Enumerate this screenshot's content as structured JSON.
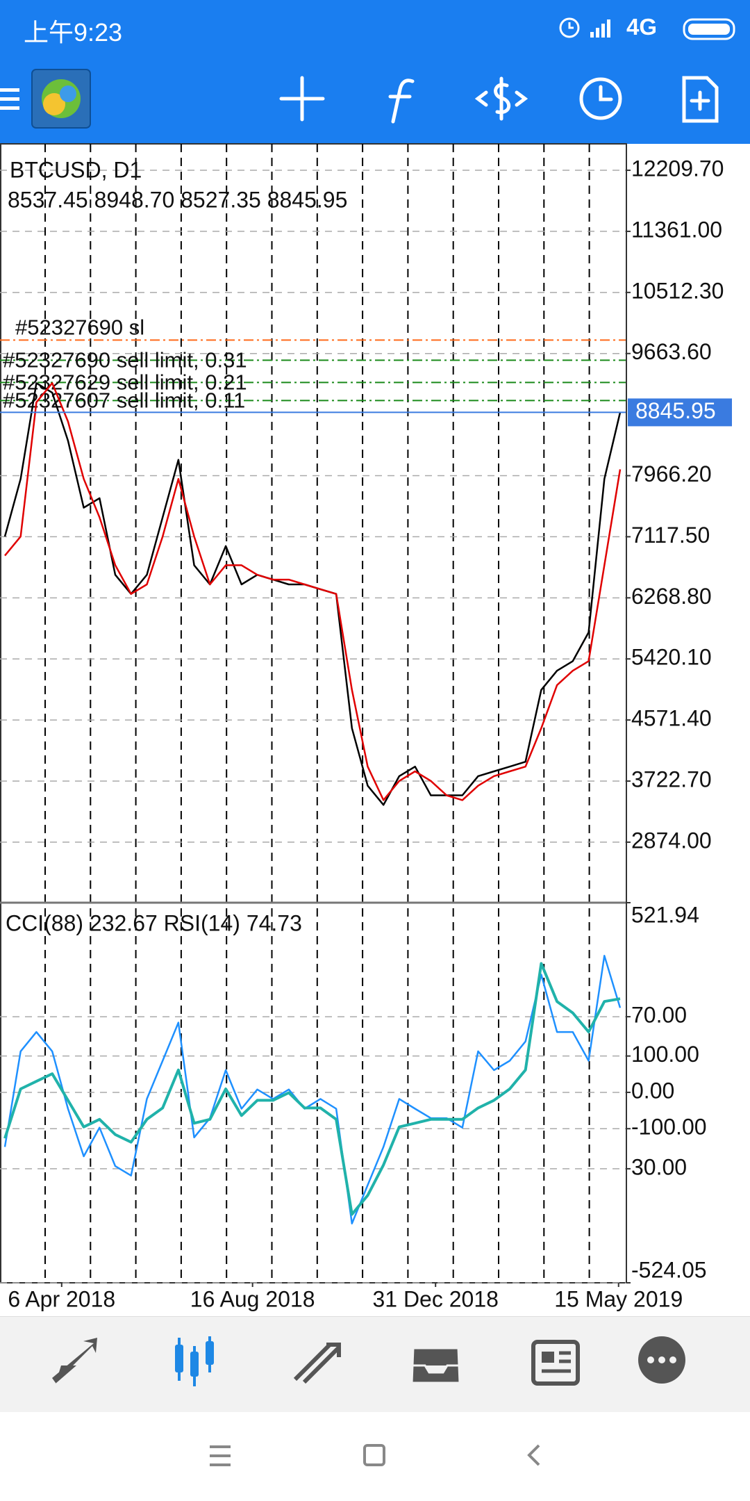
{
  "status_bar": {
    "time": "上午9:23",
    "network": "4G"
  },
  "chart_data": [
    {
      "type": "line",
      "title": "BTCUSD, D1",
      "subtitle": "8537.45 8948.70 8527.35 8845.95",
      "ylim": [
        2033,
        12577
      ],
      "yticks": [
        {
          "value": 12209.7,
          "label": "12209.70"
        },
        {
          "value": 11361,
          "label": "11361.00"
        },
        {
          "value": 10512.3,
          "label": "10512.30"
        },
        {
          "value": 9663.6,
          "label": "9663.60"
        },
        {
          "value": 7966.2,
          "label": "7966.20"
        },
        {
          "value": 7117.5,
          "label": "7117.50"
        },
        {
          "value": 6268.8,
          "label": "6268.80"
        },
        {
          "value": 5420.1,
          "label": "5420.10"
        },
        {
          "value": 4571.4,
          "label": "4571.40"
        },
        {
          "value": 3722.7,
          "label": "3722.70"
        },
        {
          "value": 2874,
          "label": "2874.00"
        }
      ],
      "grid": true,
      "series": [
        {
          "color": "#000000",
          "values": [
            7121,
            7921,
            9253,
            9119,
            8453,
            7521,
            7654,
            6589,
            6323,
            6589,
            7388,
            8187,
            6722,
            6455,
            6988,
            6455,
            6589,
            6522,
            6455,
            6455,
            6389,
            6323,
            4458,
            3658,
            3392,
            3791,
            3924,
            3525,
            3525,
            3525,
            3791,
            3858,
            3924,
            3991,
            4990,
            5256,
            5389,
            5789,
            7921,
            8845.95
          ]
        },
        {
          "color": "#e00000",
          "values": [
            6855,
            7121,
            8986,
            9253,
            8720,
            7921,
            7388,
            6722,
            6323,
            6455,
            7121,
            7921,
            7121,
            6455,
            6722,
            6722,
            6589,
            6522,
            6522,
            6455,
            6389,
            6323,
            4990,
            3924,
            3458,
            3725,
            3858,
            3725,
            3525,
            3458,
            3658,
            3791,
            3858,
            3924,
            4458,
            5056,
            5256,
            5389,
            6722,
            8054
          ]
        }
      ],
      "last_price": {
        "value": 8845.95,
        "color": "#3a7be0"
      },
      "orders": [
        {
          "label": "#52327690 sl",
          "price": 9851,
          "color": "#ff6a1a"
        },
        {
          "label": "#52327690 sell limit, 0.31",
          "price": 9570,
          "color": "#1a8a1a"
        },
        {
          "label": "#52327629 sell limit, 0.21",
          "price": 9262,
          "color": "#1a8a1a"
        },
        {
          "label": "#52327607 sell limit, 0.11",
          "price": 9010,
          "color": "#1a8a1a"
        }
      ]
    },
    {
      "type": "line",
      "title": "CCI(88) 232.67 RSI(14) 74.73",
      "ylim": [
        -524.05,
        521.94
      ],
      "yticks": [
        521.94,
        {
          "value": 100,
          "label": "100.00"
        },
        {
          "value": 0,
          "label": "0.00"
        },
        {
          "value": -100,
          "label": "-100.00"
        },
        -524.05
      ],
      "y2lim": [
        0,
        100
      ],
      "y2ticks": [
        {
          "value": 70,
          "label": "70.00"
        },
        {
          "value": 30,
          "label": "30.00"
        }
      ],
      "grid": true,
      "xticks": [
        {
          "value": 3.6,
          "label": "6 Apr 2018"
        },
        {
          "value": 15.7,
          "label": "16 Aug 2018"
        },
        {
          "value": 27.3,
          "label": "31 Dec 2018"
        },
        {
          "value": 38.9,
          "label": "15 May 2019"
        }
      ],
      "series": [
        {
          "color": "#1e90ff",
          "values": [
            -150,
            113,
            166,
            113,
            -45,
            -176,
            -97,
            -203,
            -229,
            -18,
            87,
            192,
            -124,
            -71,
            61,
            -45,
            8,
            -18,
            8,
            -45,
            -18,
            -45,
            -361,
            -255,
            -150,
            -18,
            -45,
            -71,
            -71,
            -97,
            113,
            61,
            87,
            140,
            324,
            166,
            166,
            87,
            376,
            232.67
          ]
        },
        {
          "color": "#20b2aa",
          "axis": "y2",
          "values": [
            38,
            51,
            53,
            55,
            48,
            41,
            43,
            39,
            37,
            43,
            46,
            56,
            42,
            43,
            51,
            44,
            48,
            48,
            50,
            46,
            46,
            43,
            18,
            23,
            31,
            41,
            42,
            43,
            43,
            43,
            46,
            48,
            51,
            56,
            84,
            74,
            71,
            66,
            74,
            74.73
          ]
        }
      ]
    }
  ]
}
